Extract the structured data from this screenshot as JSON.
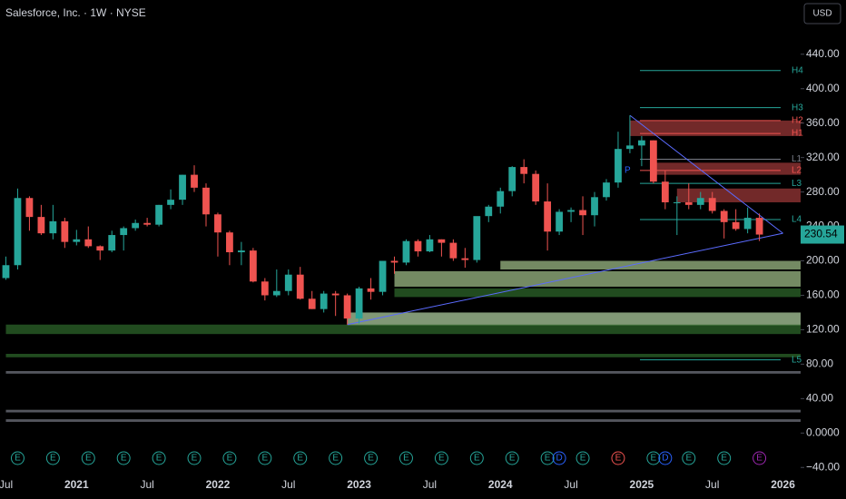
{
  "chart_data": {
    "type": "candlestick",
    "title": "Salesforce, Inc. · 1W · NYSE",
    "currency": "USD",
    "x": [
      "2020-07",
      "2020-08",
      "2020-09",
      "2020-10",
      "2020-11",
      "2020-12",
      "2021-01",
      "2021-02",
      "2021-03",
      "2021-04",
      "2021-05",
      "2021-06",
      "2021-07",
      "2021-08",
      "2021-09",
      "2021-10",
      "2021-11",
      "2021-12",
      "2022-01",
      "2022-02",
      "2022-03",
      "2022-04",
      "2022-05",
      "2022-06",
      "2022-07",
      "2022-08",
      "2022-09",
      "2022-10",
      "2022-11",
      "2022-12",
      "2023-01",
      "2023-02",
      "2023-03",
      "2023-04",
      "2023-05",
      "2023-06",
      "2023-07",
      "2023-08",
      "2023-09",
      "2023-10",
      "2023-11",
      "2023-12",
      "2024-01",
      "2024-02",
      "2024-03",
      "2024-04",
      "2024-05",
      "2024-06",
      "2024-07",
      "2024-08",
      "2024-09",
      "2024-10",
      "2024-11",
      "2024-12",
      "2025-01",
      "2025-02",
      "2025-03",
      "2025-04",
      "2025-05",
      "2025-06",
      "2025-07",
      "2025-08",
      "2025-09",
      "2025-10",
      "2025-11"
    ],
    "open": [
      180,
      195,
      273,
      251,
      232,
      246,
      222,
      225,
      217,
      212,
      230,
      238,
      244,
      242,
      265,
      271,
      300,
      285,
      254,
      233,
      210,
      212,
      176,
      160,
      165,
      184,
      156,
      144,
      162,
      160,
      133,
      168,
      164,
      200,
      198,
      223,
      211,
      225,
      221,
      203,
      201,
      252,
      263,
      281,
      309,
      301,
      269,
      234,
      257,
      259,
      253,
      274,
      291,
      330,
      334,
      340,
      292,
      268,
      268,
      265,
      273,
      258,
      245,
      237,
      250
    ],
    "high": [
      205,
      284,
      275,
      265,
      265,
      250,
      236,
      240,
      218,
      235,
      240,
      248,
      250,
      265,
      283,
      300,
      311,
      290,
      256,
      235,
      222,
      215,
      180,
      190,
      190,
      193,
      165,
      165,
      165,
      162,
      170,
      180,
      200,
      205,
      225,
      225,
      230,
      225,
      225,
      215,
      250,
      265,
      285,
      310,
      318,
      305,
      290,
      260,
      262,
      275,
      280,
      295,
      350,
      369,
      345,
      340,
      305,
      275,
      290,
      280,
      280,
      260,
      260,
      262,
      255
    ],
    "low": [
      178,
      190,
      235,
      230,
      225,
      215,
      218,
      215,
      201,
      210,
      212,
      235,
      240,
      240,
      260,
      265,
      280,
      240,
      205,
      195,
      195,
      175,
      154,
      158,
      160,
      155,
      144,
      140,
      136,
      126,
      127,
      155,
      160,
      185,
      195,
      205,
      210,
      205,
      200,
      192,
      198,
      245,
      255,
      275,
      290,
      265,
      212,
      230,
      245,
      230,
      240,
      270,
      285,
      325,
      310,
      290,
      260,
      230,
      260,
      260,
      255,
      226,
      235,
      232,
      223
    ],
    "close": [
      195,
      273,
      251,
      232,
      246,
      222,
      225,
      217,
      212,
      230,
      238,
      244,
      242,
      265,
      271,
      300,
      285,
      254,
      233,
      210,
      212,
      176,
      160,
      165,
      184,
      156,
      144,
      162,
      160,
      133,
      168,
      164,
      200,
      198,
      223,
      211,
      225,
      221,
      203,
      201,
      252,
      263,
      281,
      309,
      301,
      269,
      234,
      257,
      259,
      253,
      274,
      291,
      330,
      334,
      340,
      292,
      268,
      268,
      265,
      273,
      258,
      245,
      237,
      250,
      230.54
    ],
    "last_price": 230.54,
    "up_color": "#26a69a",
    "down_color": "#ef5350",
    "xlim": [
      "2020-07",
      "2026-03"
    ],
    "xticks": [
      {
        "value": "2020-07",
        "label": "Jul"
      },
      {
        "value": "2021-01",
        "label": "2021"
      },
      {
        "value": "2021-07",
        "label": "Jul"
      },
      {
        "value": "2022-01",
        "label": "2022"
      },
      {
        "value": "2022-07",
        "label": "Jul"
      },
      {
        "value": "2023-01",
        "label": "2023"
      },
      {
        "value": "2023-07",
        "label": "Jul"
      },
      {
        "value": "2024-01",
        "label": "2024"
      },
      {
        "value": "2024-07",
        "label": "Jul"
      },
      {
        "value": "2025-01",
        "label": "2025"
      },
      {
        "value": "2025-07",
        "label": "Jul"
      },
      {
        "value": "2026-01",
        "label": "2026"
      }
    ],
    "ylim": [
      -45,
      503
    ],
    "yticks": [
      {
        "value": -40,
        "label": "−40.00"
      },
      {
        "value": 0,
        "label": "0.0000"
      },
      {
        "value": 40,
        "label": "40.00"
      },
      {
        "value": 80,
        "label": "80.00"
      },
      {
        "value": 120,
        "label": "120.00"
      },
      {
        "value": 160,
        "label": "160.00"
      },
      {
        "value": 200,
        "label": "200.00"
      },
      {
        "value": 240,
        "label": "240.00"
      },
      {
        "value": 280,
        "label": "280.00"
      },
      {
        "value": 320,
        "label": "320.00"
      },
      {
        "value": 360,
        "label": "360.00"
      },
      {
        "value": 400,
        "label": "400.00"
      },
      {
        "value": 440,
        "label": "440.00"
      }
    ],
    "pivots": [
      {
        "label": "H4",
        "value": 421,
        "color": "#26a69a"
      },
      {
        "label": "H3",
        "value": 378,
        "color": "#26a69a"
      },
      {
        "label": "H2",
        "value": 363,
        "color": "#ef5350"
      },
      {
        "label": "H1",
        "value": 348,
        "color": "#ef5350"
      },
      {
        "label": "P",
        "value": 305,
        "color": "#2962ff"
      },
      {
        "label": "L1",
        "value": 318,
        "color": "#787b86"
      },
      {
        "label": "L2",
        "value": 305,
        "color": "#ef5350"
      },
      {
        "label": "L3",
        "value": 290,
        "color": "#26a69a"
      },
      {
        "label": "L4",
        "value": 248,
        "color": "#26a69a"
      },
      {
        "label": "L5",
        "value": 85,
        "color": "#26a69a"
      }
    ],
    "zones": [
      {
        "low": 345,
        "high": 363,
        "color": "#a33a3a",
        "start": "2024-12"
      },
      {
        "low": 300,
        "high": 314,
        "color": "#a33a3a",
        "start": "2025-02"
      },
      {
        "low": 268,
        "high": 284,
        "color": "#a33a3a",
        "start": "2025-04"
      },
      {
        "low": 190,
        "high": 200,
        "color": "#a5c48d",
        "start": "2024-01"
      },
      {
        "low": 170,
        "high": 188,
        "color": "#a5c48d",
        "start": "2023-04"
      },
      {
        "low": 158,
        "high": 168,
        "color": "#2f6b2c",
        "start": "2023-04"
      },
      {
        "low": 125,
        "high": 140,
        "color": "#b8d8a8",
        "start": "2022-12"
      },
      {
        "low": 115,
        "high": 126,
        "color": "#2f6b2c",
        "start": "2020-07"
      },
      {
        "low": 88,
        "high": 92,
        "color": "#2f6b2c",
        "start": "2020-07"
      },
      {
        "low": 69,
        "high": 72,
        "color": "#787b86",
        "start": "2020-07"
      },
      {
        "low": 24,
        "high": 27,
        "color": "#787b86",
        "start": "2020-07"
      },
      {
        "low": 13,
        "high": 16,
        "color": "#787b86",
        "start": "2020-07"
      }
    ],
    "trendlines": [
      {
        "x": [
          "2022-12",
          "2026-01"
        ],
        "y": [
          126,
          232
        ],
        "color": "#5b6bff"
      },
      {
        "x": [
          "2024-12",
          "2026-01"
        ],
        "y": [
          369,
          232
        ],
        "color": "#5b6bff"
      }
    ],
    "events": [
      {
        "x": "2020-08",
        "label": "E",
        "color": "#26a69a"
      },
      {
        "x": "2020-11",
        "label": "E",
        "color": "#26a69a"
      },
      {
        "x": "2021-02",
        "label": "E",
        "color": "#26a69a"
      },
      {
        "x": "2021-05",
        "label": "E",
        "color": "#26a69a"
      },
      {
        "x": "2021-08",
        "label": "E",
        "color": "#26a69a"
      },
      {
        "x": "2021-11",
        "label": "E",
        "color": "#26a69a"
      },
      {
        "x": "2022-02",
        "label": "E",
        "color": "#26a69a"
      },
      {
        "x": "2022-05",
        "label": "E",
        "color": "#26a69a"
      },
      {
        "x": "2022-08",
        "label": "E",
        "color": "#26a69a"
      },
      {
        "x": "2022-11",
        "label": "E",
        "color": "#26a69a"
      },
      {
        "x": "2023-02",
        "label": "E",
        "color": "#26a69a"
      },
      {
        "x": "2023-05",
        "label": "E",
        "color": "#26a69a"
      },
      {
        "x": "2023-08",
        "label": "E",
        "color": "#26a69a"
      },
      {
        "x": "2023-11",
        "label": "E",
        "color": "#26a69a"
      },
      {
        "x": "2024-02",
        "label": "E",
        "color": "#26a69a"
      },
      {
        "x": "2024-05",
        "label": "E",
        "color": "#26a69a"
      },
      {
        "x": "2024-06",
        "label": "D",
        "color": "#2962ff"
      },
      {
        "x": "2024-08",
        "label": "E",
        "color": "#26a69a"
      },
      {
        "x": "2024-11",
        "label": "E",
        "color": "#ef5350"
      },
      {
        "x": "2025-02",
        "label": "E",
        "color": "#26a69a"
      },
      {
        "x": "2025-03",
        "label": "D",
        "color": "#2962ff"
      },
      {
        "x": "2025-05",
        "label": "E",
        "color": "#26a69a"
      },
      {
        "x": "2025-08",
        "label": "E",
        "color": "#26a69a"
      },
      {
        "x": "2025-11",
        "label": "E",
        "color": "#9c27b0"
      }
    ]
  }
}
